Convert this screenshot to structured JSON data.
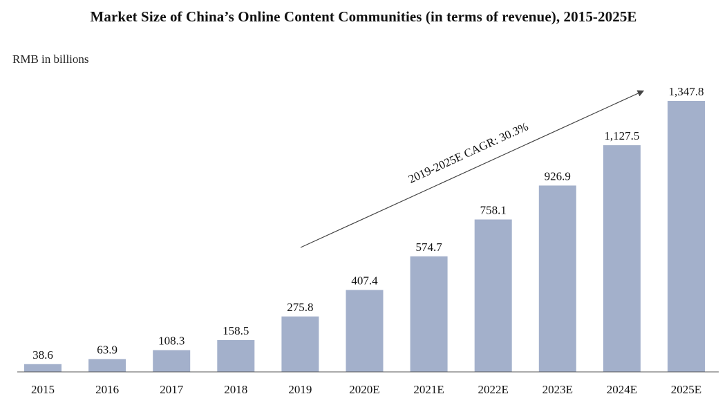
{
  "chart_data": {
    "type": "bar",
    "title": "Market Size of China’s Online Content Communities (in terms of revenue), 2015-2025E",
    "unit_label": "RMB in billions",
    "categories": [
      "2015",
      "2016",
      "2017",
      "2018",
      "2019",
      "2020E",
      "2021E",
      "2022E",
      "2023E",
      "2024E",
      "2025E"
    ],
    "values": [
      38.6,
      63.9,
      108.3,
      158.5,
      275.8,
      407.4,
      574.7,
      758.1,
      926.9,
      1127.5,
      1347.8
    ],
    "value_labels": [
      "38.6",
      "63.9",
      "108.3",
      "158.5",
      "275.8",
      "407.4",
      "574.7",
      "758.1",
      "926.9",
      "1,127.5",
      "1,347.8"
    ],
    "annotation": "2019-2025E CAGR: 30.3%",
    "ylim": [
      0,
      1347.8
    ],
    "bar_color": "#a3b0cb",
    "grid": false,
    "legend": "none"
  }
}
